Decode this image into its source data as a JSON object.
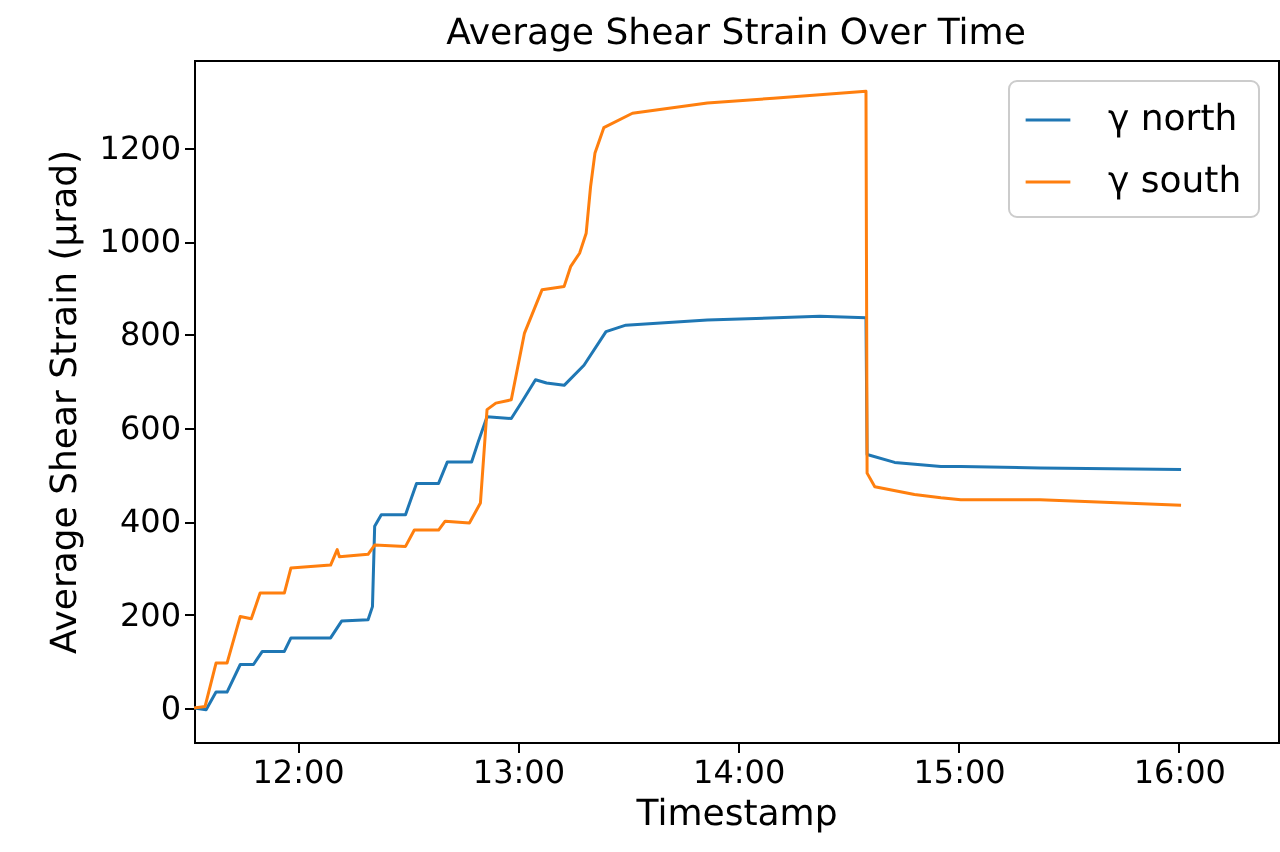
{
  "chart_data": {
    "type": "line",
    "title": "Average Shear Strain Over Time",
    "xlabel": "Timestamp",
    "ylabel": "Average Shear Strain (μrad)",
    "xlim": [
      11.53,
      16.45
    ],
    "xticks": [
      {
        "value": 12,
        "label": "12:00"
      },
      {
        "value": 13,
        "label": "13:00"
      },
      {
        "value": 14,
        "label": "14:00"
      },
      {
        "value": 15,
        "label": "15:00"
      },
      {
        "value": 16,
        "label": "16:00"
      }
    ],
    "ylim": [
      -73,
      1388
    ],
    "yticks": [
      0,
      200,
      400,
      600,
      800,
      1000,
      1200
    ],
    "grid": false,
    "legend": "top right",
    "marker": "none",
    "line_style": "solid",
    "series": [
      {
        "name": "γ north",
        "color": "#1f77b4",
        "x": [
          11.53,
          11.585,
          11.63,
          11.68,
          11.74,
          11.8,
          11.84,
          11.94,
          11.97,
          12.15,
          12.2,
          12.32,
          12.34,
          12.35,
          12.38,
          12.49,
          12.54,
          12.64,
          12.68,
          12.79,
          12.82,
          12.86,
          12.97,
          13.02,
          13.08,
          13.13,
          13.21,
          13.3,
          13.4,
          13.49,
          13.86,
          14.37,
          14.58,
          14.585,
          14.71,
          14.92,
          15.01,
          15.37,
          16.01
        ],
        "values": [
          0,
          -4,
          34,
          34,
          93,
          93,
          121,
          121,
          150,
          150,
          186,
          189,
          217,
          389,
          414,
          414,
          481,
          481,
          527,
          527,
          570,
          624,
          620,
          657,
          703,
          696,
          691,
          734,
          806,
          820,
          831,
          839,
          836,
          543,
          526,
          517,
          517,
          514,
          511
        ]
      },
      {
        "name": "γ south",
        "color": "#ff7f0e",
        "x": [
          11.53,
          11.58,
          11.63,
          11.68,
          11.74,
          11.79,
          11.83,
          11.94,
          11.97,
          12.15,
          12.18,
          12.19,
          12.32,
          12.35,
          12.49,
          12.53,
          12.64,
          12.67,
          12.78,
          12.83,
          12.86,
          12.9,
          12.97,
          13.03,
          13.11,
          13.21,
          13.24,
          13.28,
          13.31,
          13.33,
          13.35,
          13.39,
          13.52,
          13.86,
          14.16,
          14.58,
          14.585,
          14.62,
          14.8,
          14.92,
          15.01,
          15.37,
          16.01
        ],
        "values": [
          0,
          3,
          96,
          96,
          196,
          191,
          246,
          246,
          300,
          306,
          339,
          324,
          329,
          349,
          346,
          381,
          381,
          400,
          396,
          439,
          639,
          653,
          660,
          803,
          896,
          903,
          946,
          974,
          1017,
          1117,
          1189,
          1243,
          1274,
          1296,
          1306,
          1321,
          503,
          474,
          457,
          450,
          446,
          446,
          434
        ]
      }
    ]
  }
}
